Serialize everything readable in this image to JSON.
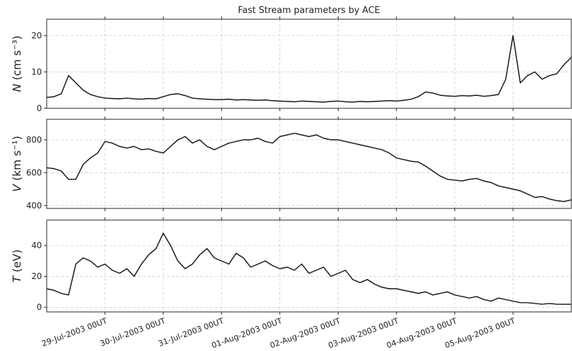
{
  "chart_data": {
    "type": "line",
    "title": "Fast Stream parameters by ACE",
    "x": [
      "28-Jul-2003 00UT",
      "28-Jul-2003 03UT",
      "28-Jul-2003 06UT",
      "28-Jul-2003 09UT",
      "28-Jul-2003 12UT",
      "28-Jul-2003 15UT",
      "28-Jul-2003 18UT",
      "28-Jul-2003 21UT",
      "29-Jul-2003 00UT",
      "29-Jul-2003 03UT",
      "29-Jul-2003 06UT",
      "29-Jul-2003 09UT",
      "29-Jul-2003 12UT",
      "29-Jul-2003 15UT",
      "29-Jul-2003 18UT",
      "29-Jul-2003 21UT",
      "30-Jul-2003 00UT",
      "30-Jul-2003 03UT",
      "30-Jul-2003 06UT",
      "30-Jul-2003 09UT",
      "30-Jul-2003 12UT",
      "30-Jul-2003 15UT",
      "30-Jul-2003 18UT",
      "30-Jul-2003 21UT",
      "31-Jul-2003 00UT",
      "31-Jul-2003 03UT",
      "31-Jul-2003 06UT",
      "31-Jul-2003 09UT",
      "31-Jul-2003 12UT",
      "31-Jul-2003 15UT",
      "31-Jul-2003 18UT",
      "31-Jul-2003 21UT",
      "01-Aug-2003 00UT",
      "01-Aug-2003 03UT",
      "01-Aug-2003 06UT",
      "01-Aug-2003 09UT",
      "01-Aug-2003 12UT",
      "01-Aug-2003 15UT",
      "01-Aug-2003 18UT",
      "01-Aug-2003 21UT",
      "02-Aug-2003 00UT",
      "02-Aug-2003 03UT",
      "02-Aug-2003 06UT",
      "02-Aug-2003 09UT",
      "02-Aug-2003 12UT",
      "02-Aug-2003 15UT",
      "02-Aug-2003 18UT",
      "02-Aug-2003 21UT",
      "03-Aug-2003 00UT",
      "03-Aug-2003 03UT",
      "03-Aug-2003 06UT",
      "03-Aug-2003 09UT",
      "03-Aug-2003 12UT",
      "03-Aug-2003 15UT",
      "03-Aug-2003 18UT",
      "03-Aug-2003 21UT",
      "04-Aug-2003 00UT",
      "04-Aug-2003 03UT",
      "04-Aug-2003 06UT",
      "04-Aug-2003 09UT",
      "04-Aug-2003 12UT",
      "04-Aug-2003 15UT",
      "04-Aug-2003 18UT",
      "04-Aug-2003 21UT",
      "05-Aug-2003 00UT",
      "05-Aug-2003 03UT",
      "05-Aug-2003 06UT",
      "05-Aug-2003 09UT",
      "05-Aug-2003 12UT",
      "05-Aug-2003 15UT",
      "05-Aug-2003 18UT",
      "05-Aug-2003 21UT",
      "06-Aug-2003 00UT"
    ],
    "xlim": [
      "28-Jul-2003 00UT",
      "06-Aug-2003 00UT"
    ],
    "xticks": [
      {
        "value": "29-Jul-2003 00UT",
        "label": "29-Jul-2003 00UT"
      },
      {
        "value": "30-Jul-2003 00UT",
        "label": "30-Jul-2003 00UT"
      },
      {
        "value": "31-Jul-2003 00UT",
        "label": "31-Jul-2003 00UT"
      },
      {
        "value": "01-Aug-2003 00UT",
        "label": "01-Aug-2003 00UT"
      },
      {
        "value": "02-Aug-2003 00UT",
        "label": "02-Aug-2003 00UT"
      },
      {
        "value": "03-Aug-2003 00UT",
        "label": "03-Aug-2003 00UT"
      },
      {
        "value": "04-Aug-2003 00UT",
        "label": "04-Aug-2003 00UT"
      },
      {
        "value": "05-Aug-2003 00UT",
        "label": "05-Aug-2003 00UT"
      }
    ],
    "grid": true,
    "panels": [
      {
        "ylabel_symbol": "N",
        "ylabel_unit": "(cm s⁻³)",
        "ylim": [
          0,
          24.5
        ],
        "yticks": [
          0,
          10,
          20
        ],
        "series": [
          {
            "color": "#222222",
            "values": [
              3,
              3.2,
              4,
              9,
              7,
              5,
              3.8,
              3.2,
              2.8,
              2.7,
              2.6,
              2.8,
              2.6,
              2.5,
              2.7,
              2.6,
              3.2,
              3.8,
              4,
              3.5,
              2.8,
              2.6,
              2.5,
              2.4,
              2.4,
              2.5,
              2.3,
              2.4,
              2.3,
              2.2,
              2.3,
              2.1,
              2.0,
              1.9,
              1.8,
              2.0,
              1.9,
              1.8,
              1.7,
              1.9,
              2.0,
              1.8,
              1.7,
              1.9,
              1.8,
              1.9,
              2.0,
              2.1,
              2.0,
              2.2,
              2.5,
              3.2,
              4.5,
              4.2,
              3.6,
              3.4,
              3.3,
              3.5,
              3.4,
              3.6,
              3.3,
              3.5,
              3.8,
              8,
              20,
              7,
              9,
              10,
              8,
              9,
              9.5,
              12,
              14
            ]
          }
        ]
      },
      {
        "ylabel_symbol": "V",
        "ylabel_unit": "(km s⁻¹)",
        "ylim": [
          383,
          925
        ],
        "yticks": [
          400,
          600,
          800
        ],
        "series": [
          {
            "color": "#222222",
            "values": [
              630,
              625,
              610,
              560,
              560,
              650,
              690,
              720,
              790,
              780,
              760,
              750,
              760,
              740,
              745,
              730,
              720,
              760,
              800,
              820,
              780,
              800,
              760,
              740,
              760,
              780,
              790,
              800,
              800,
              810,
              790,
              780,
              820,
              830,
              840,
              830,
              820,
              830,
              810,
              800,
              800,
              790,
              780,
              770,
              760,
              750,
              740,
              720,
              690,
              680,
              670,
              665,
              640,
              610,
              580,
              560,
              555,
              550,
              560,
              565,
              550,
              540,
              520,
              510,
              500,
              490,
              470,
              450,
              455,
              440,
              430,
              425,
              435
            ]
          }
        ]
      },
      {
        "ylabel_symbol": "T",
        "ylabel_unit": "(eV)",
        "ylim": [
          -3,
          56.5
        ],
        "yticks": [
          0,
          20,
          40
        ],
        "series": [
          {
            "color": "#222222",
            "values": [
              12,
              11,
              9,
              8,
              28,
              32,
              30,
              26,
              28,
              24,
              22,
              25,
              20,
              28,
              34,
              38,
              48,
              40,
              30,
              25,
              28,
              34,
              38,
              32,
              30,
              28,
              35,
              32,
              26,
              28,
              30,
              27,
              25,
              26,
              24,
              28,
              22,
              24,
              26,
              20,
              22,
              24,
              18,
              16,
              18,
              15,
              13,
              12,
              12,
              11,
              10,
              9,
              10,
              8,
              9,
              10,
              8,
              7,
              6,
              7,
              5,
              4,
              6,
              5,
              4,
              3,
              3,
              2.5,
              2,
              2.5,
              2,
              2,
              2
            ]
          }
        ]
      }
    ]
  }
}
